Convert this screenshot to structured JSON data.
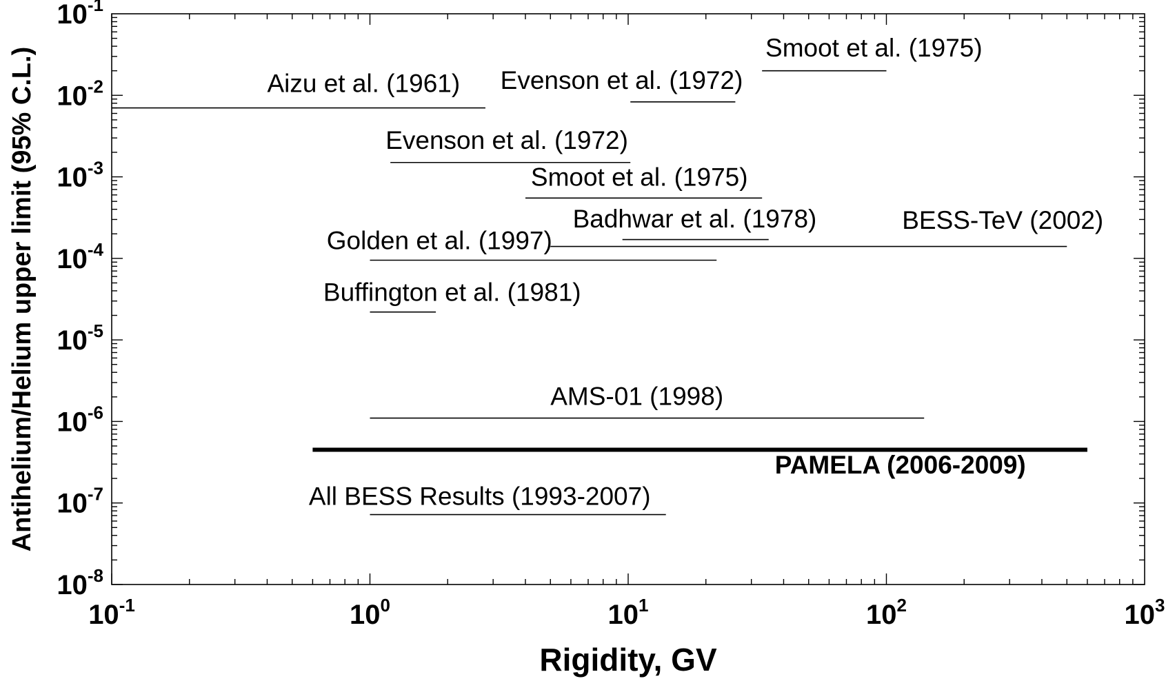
{
  "chart_data": {
    "type": "line",
    "xlabel": "Rigidity, GV",
    "ylabel": "Antihelium/Helium upper limit (95% C.L.)",
    "xscale": "log",
    "yscale": "log",
    "xlim": [
      0.1,
      1000
    ],
    "ylim": [
      1e-08,
      0.1
    ],
    "x_ticks": [
      {
        "value": 0.1,
        "base": "10",
        "exp": "-1"
      },
      {
        "value": 1,
        "base": "10",
        "exp": "0"
      },
      {
        "value": 10,
        "base": "10",
        "exp": "1"
      },
      {
        "value": 100,
        "base": "10",
        "exp": "2"
      },
      {
        "value": 1000,
        "base": "10",
        "exp": "3"
      }
    ],
    "y_ticks": [
      {
        "value": 0.1,
        "base": "10",
        "exp": "-1"
      },
      {
        "value": 0.01,
        "base": "10",
        "exp": "-2"
      },
      {
        "value": 0.001,
        "base": "10",
        "exp": "-3"
      },
      {
        "value": 0.0001,
        "base": "10",
        "exp": "-4"
      },
      {
        "value": 1e-05,
        "base": "10",
        "exp": "-5"
      },
      {
        "value": 1e-06,
        "base": "10",
        "exp": "-6"
      },
      {
        "value": 1e-07,
        "base": "10",
        "exp": "-7"
      },
      {
        "value": 1e-08,
        "base": "10",
        "exp": "-8"
      }
    ],
    "grid": false,
    "series": [
      {
        "name": "Aizu et al. (1961)",
        "x": [
          0.1,
          2.8
        ],
        "y": [
          0.007,
          0.007
        ]
      },
      {
        "name": "Evenson et al. (1972)",
        "x": [
          10.2,
          26
        ],
        "y": [
          0.0083,
          0.0083
        ]
      },
      {
        "name": "Smoot et al. (1975)",
        "x": [
          33,
          100
        ],
        "y": [
          0.02,
          0.02
        ]
      },
      {
        "name": "Evenson et al. (1972)",
        "x": [
          1.2,
          10.2
        ],
        "y": [
          0.0015,
          0.0015
        ]
      },
      {
        "name": "Smoot et al. (1975)",
        "x": [
          4,
          33
        ],
        "y": [
          0.00055,
          0.00055
        ]
      },
      {
        "name": "Badhwar et al. (1978)",
        "x": [
          9.5,
          35
        ],
        "y": [
          0.00017,
          0.00017
        ]
      },
      {
        "name": "BESS-TeV (2002)",
        "x": [
          5,
          500
        ],
        "y": [
          0.00014,
          0.00014
        ]
      },
      {
        "name": "Golden et al. (1997)",
        "x": [
          1,
          22
        ],
        "y": [
          9.5e-05,
          9.5e-05
        ]
      },
      {
        "name": "Buffington et al. (1981)",
        "x": [
          1,
          1.8
        ],
        "y": [
          2.2e-05,
          2.2e-05
        ]
      },
      {
        "name": "AMS-01 (1998)",
        "x": [
          1,
          140
        ],
        "y": [
          1.1e-06,
          1.1e-06
        ]
      },
      {
        "name": "PAMELA (2006-2009)",
        "x": [
          0.6,
          600
        ],
        "y": [
          4.5e-07,
          4.5e-07
        ]
      },
      {
        "name": "All BESS Results (1993-2007)",
        "x": [
          1,
          14
        ],
        "y": [
          7.2e-08,
          7.2e-08
        ]
      }
    ],
    "annotations": [
      {
        "text": "Aizu et al. (1961)",
        "x": 0.4,
        "y": 0.011
      },
      {
        "text": "Evenson et al. (1972)",
        "x": 3.2,
        "y": 0.012
      },
      {
        "text": "Smoot et al. (1975)",
        "x": 34,
        "y": 0.03
      },
      {
        "text": "Evenson et al. (1972)",
        "x": 1.15,
        "y": 0.0022
      },
      {
        "text": "Smoot et al. (1975)",
        "x": 4.2,
        "y": 0.00078
      },
      {
        "text": "Badhwar et al. (1978)",
        "x": 6.1,
        "y": 0.00024
      },
      {
        "text": "BESS-TeV (2002)",
        "x": 115,
        "y": 0.00023
      },
      {
        "text": "Golden et al. (1997)",
        "x": 0.68,
        "y": 0.00013
      },
      {
        "text": "Buffington et al. (1981)",
        "x": 0.66,
        "y": 3e-05
      },
      {
        "text": "AMS-01 (1998)",
        "x": 5,
        "y": 1.6e-06
      },
      {
        "text": "PAMELA (2006-2009)",
        "x": 37,
        "y": 2.3e-07
      },
      {
        "text": "All BESS Results (1993-2007)",
        "x": 0.58,
        "y": 9.5e-08
      }
    ]
  }
}
